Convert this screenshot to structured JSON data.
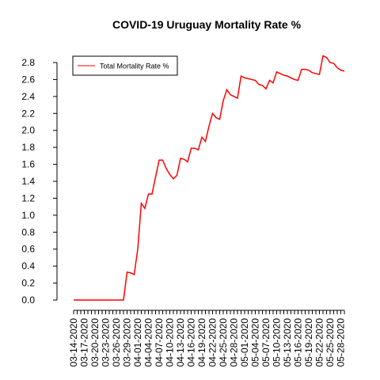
{
  "chart_data": {
    "type": "line",
    "title": "COVID-19 Uruguay Mortality Rate %",
    "categories": [
      "03-14-2020",
      null,
      null,
      "03-17-2020",
      null,
      null,
      "03-20-2020",
      null,
      null,
      "03-23-2020",
      null,
      null,
      "03-26-2020",
      null,
      null,
      "03-29-2020",
      null,
      null,
      "04-01-2020",
      null,
      null,
      "04-04-2020",
      null,
      null,
      "04-07-2020",
      null,
      null,
      "04-10-2020",
      null,
      null,
      "04-13-2020",
      null,
      null,
      "04-16-2020",
      null,
      null,
      "04-19-2020",
      null,
      null,
      "04-22-2020",
      null,
      null,
      "04-25-2020",
      null,
      null,
      "04-28-2020",
      null,
      null,
      "05-01-2020",
      null,
      null,
      "05-04-2020",
      null,
      null,
      "05-07-2020",
      null,
      null,
      "05-10-2020",
      null,
      null,
      "05-13-2020",
      null,
      null,
      "05-16-2020",
      null,
      null,
      "05-19-2020",
      null,
      null,
      "05-22-2020",
      null,
      null,
      "05-25-2020",
      null,
      null,
      "05-28-2020",
      null
    ],
    "series": [
      {
        "name": "Total Mortality Rate %",
        "color": "#ff0000",
        "values": [
          0,
          0,
          0,
          0,
          0,
          0,
          0,
          0,
          0,
          0,
          0,
          0,
          0,
          0,
          0,
          0.33,
          0.32,
          0.3,
          0.6,
          1.14,
          1.08,
          1.25,
          1.25,
          1.45,
          1.65,
          1.65,
          1.55,
          1.48,
          1.43,
          1.47,
          1.67,
          1.66,
          1.63,
          1.79,
          1.79,
          1.77,
          1.92,
          1.87,
          2.05,
          2.2,
          2.15,
          2.13,
          2.35,
          2.48,
          2.42,
          2.4,
          2.38,
          2.64,
          2.62,
          2.61,
          2.6,
          2.59,
          2.54,
          2.53,
          2.49,
          2.59,
          2.56,
          2.69,
          2.67,
          2.65,
          2.64,
          2.62,
          2.6,
          2.59,
          2.72,
          2.72,
          2.71,
          2.68,
          2.67,
          2.66,
          2.88,
          2.86,
          2.8,
          2.79,
          2.74,
          2.71,
          2.7
        ]
      }
    ],
    "ylim": [
      0,
      2.8
    ],
    "yticks": [
      {
        "value": 0,
        "label": "0.0"
      },
      0.2,
      0.4,
      0.6,
      0.8,
      {
        "value": 1,
        "label": "1.0"
      },
      1.2,
      1.4,
      1.6,
      1.8,
      {
        "value": 2,
        "label": "2.0"
      },
      2.2,
      2.4,
      2.6,
      2.8
    ],
    "legend": "top-left"
  }
}
